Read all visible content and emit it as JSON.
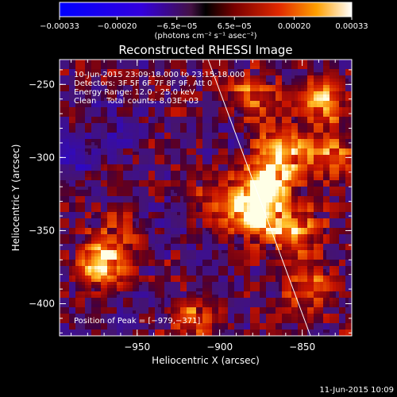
{
  "chart_data": {
    "type": "heatmap",
    "title": "Reconstructed RHESSI Image",
    "xlabel": "Heliocentric X (arcsec)",
    "ylabel": "Heliocentric Y (arcsec)",
    "xlim": [
      -997,
      -820
    ],
    "ylim": [
      -422,
      -233
    ],
    "x_ticks": [
      -950,
      -900,
      -850
    ],
    "y_ticks": [
      -250,
      -300,
      -350,
      -400
    ],
    "x_tick_labels": [
      "−950",
      "−900",
      "−850"
    ],
    "y_tick_labels": [
      "−250",
      "−300",
      "−350",
      "−400"
    ],
    "colorbar": {
      "range": [
        -0.00033,
        0.00033
      ],
      "ticks": [
        -0.00033,
        -0.0002,
        -6.5e-05,
        6.5e-05,
        0.0002,
        0.00033
      ],
      "tick_labels": [
        "−0.00033",
        "−0.00020",
        "−6.5e−05",
        "6.5e−05",
        "0.00020",
        "0.00033"
      ],
      "units": "(photons cm⁻² s⁻¹ asec⁻²)"
    },
    "peak_position": [
      -979,
      -371
    ],
    "limb_line": {
      "x": [
        -907,
        -845
      ],
      "y": [
        -233,
        -422
      ]
    },
    "bright_sources": [
      {
        "x": -880,
        "y": -338,
        "level": 0.95
      },
      {
        "x": -872,
        "y": -318,
        "level": 0.9
      },
      {
        "x": -862,
        "y": -295,
        "level": 0.8
      },
      {
        "x": -855,
        "y": -350,
        "level": 0.75
      },
      {
        "x": -880,
        "y": -260,
        "level": 0.6
      },
      {
        "x": -838,
        "y": -262,
        "level": 0.7
      },
      {
        "x": -830,
        "y": -300,
        "level": 0.55
      },
      {
        "x": -971,
        "y": -373,
        "level": 0.95
      },
      {
        "x": -845,
        "y": -390,
        "level": 0.5
      },
      {
        "x": -915,
        "y": -410,
        "level": 0.45
      },
      {
        "x": -960,
        "y": -350,
        "level": 0.3
      },
      {
        "x": -905,
        "y": -330,
        "level": 0.35
      }
    ],
    "dim_sources": [
      {
        "x": -985,
        "y": -300,
        "level": -0.4
      },
      {
        "x": -960,
        "y": -275,
        "level": -0.3
      },
      {
        "x": -930,
        "y": -345,
        "level": -0.25
      },
      {
        "x": -945,
        "y": -400,
        "level": -0.2
      },
      {
        "x": -900,
        "y": -285,
        "level": -0.15
      }
    ]
  },
  "annotations": {
    "time_range": "10-Jun-2015 23:09:18.000 to 23:15:18.000",
    "detectors": "Detectors: 3F 5F 6F 7F 8F 9F, Att 0",
    "energy_range": "Energy Range: 12.0 - 25.0 keV",
    "method_counts": "Clean    Total counts: 8.03E+03",
    "peak_text": "Position of Peak = [−979,−371]"
  },
  "footer": {
    "timestamp": "11-Jun-2015 10:09"
  }
}
